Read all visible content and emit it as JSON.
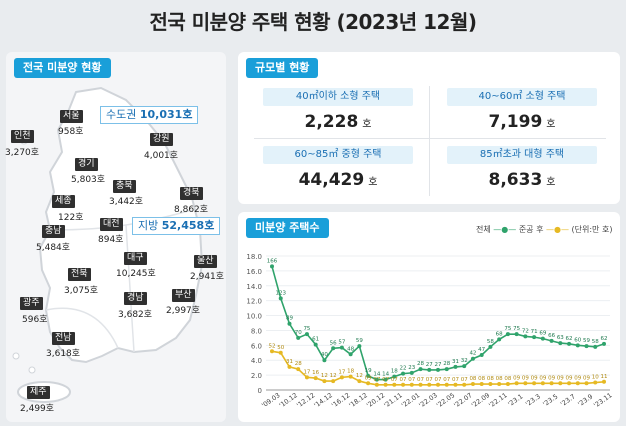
{
  "title": "전국 미분양 주택 현황 (2023년 12월)",
  "left": {
    "tag": "전국 미분양 현황",
    "regions": [
      {
        "name": "서울",
        "value": "958호"
      },
      {
        "name": "인천",
        "value": "3,270호"
      },
      {
        "name": "경기",
        "value": "5,803호"
      },
      {
        "name": "강원",
        "value": "4,001호"
      },
      {
        "name": "충북",
        "value": "3,442호"
      },
      {
        "name": "세종",
        "value": "122호"
      },
      {
        "name": "충남",
        "value": "5,484호"
      },
      {
        "name": "대전",
        "value": "894호"
      },
      {
        "name": "경북",
        "value": "8,862호"
      },
      {
        "name": "전북",
        "value": "3,075호"
      },
      {
        "name": "대구",
        "value": "10,245호"
      },
      {
        "name": "울산",
        "value": "2,941호"
      },
      {
        "name": "광주",
        "value": "596호"
      },
      {
        "name": "경남",
        "value": "3,682호"
      },
      {
        "name": "부산",
        "value": "2,997호"
      },
      {
        "name": "전남",
        "value": "3,618호"
      },
      {
        "name": "제주",
        "value": "2,499호"
      }
    ],
    "capital": {
      "label": "수도권",
      "value": "10,031호"
    },
    "local": {
      "label": "지방",
      "value": "52,458호"
    }
  },
  "size": {
    "tag": "규모별 현황",
    "cells": [
      {
        "label": "40㎡이하 소형 주택",
        "value": "2,228",
        "unit": "호"
      },
      {
        "label": "40~60㎡ 소형 주택",
        "value": "7,199",
        "unit": "호"
      },
      {
        "label": "60~85㎡ 중형 주택",
        "value": "44,429",
        "unit": "호"
      },
      {
        "label": "85㎡초과 대형 주택",
        "value": "8,633",
        "unit": "호"
      }
    ]
  },
  "chart_panel": {
    "tag": "미분양 주택수",
    "legend_total": "전체",
    "legend_after": "준공 후",
    "unit": "(단위:만 호)"
  },
  "chart_data": {
    "type": "line",
    "ylim": [
      0,
      18
    ],
    "yticks": [
      "0",
      "2.0",
      "4.0",
      "6.0",
      "8.0",
      "10.0",
      "12.0",
      "14.0",
      "16.0",
      "18.0"
    ],
    "xticks": [
      "'09.03",
      "'10.12",
      "'12.12",
      "'14.12",
      "'16.12",
      "'18.12",
      "'20.12",
      "'21.11",
      "'22.01",
      "'22.03",
      "'22.05",
      "'22.07",
      "'22.09",
      "'22.11",
      "'23.1",
      "'23.3",
      "'23.5",
      "'23.7",
      "'23.9",
      "'23.11"
    ],
    "series": [
      {
        "name": "전체",
        "color": "#2fa36b",
        "values": [
          16.6,
          12.3,
          8.9,
          7.0,
          7.5,
          6.1,
          4.0,
          5.6,
          5.7,
          4.8,
          5.9,
          1.9,
          1.4,
          1.4,
          1.8,
          2.2,
          2.3,
          2.8,
          2.7,
          2.7,
          2.8,
          3.1,
          3.2,
          4.2,
          4.7,
          5.8,
          6.8,
          7.5,
          7.5,
          7.2,
          7.1,
          6.9,
          6.6,
          6.3,
          6.2,
          6.0,
          5.9,
          5.8,
          6.2
        ],
        "labels": [
          "166",
          "123",
          "89",
          "70",
          "75",
          "61",
          "40",
          "56",
          "57",
          "48",
          "59",
          "19",
          "14",
          "14",
          "18",
          "22",
          "23",
          "28",
          "27",
          "27",
          "28",
          "31",
          "32",
          "42",
          "47",
          "58",
          "68",
          "75",
          "75",
          "72",
          "71",
          "69",
          "66",
          "63",
          "62",
          "60",
          "59",
          "58",
          "62"
        ]
      },
      {
        "name": "준공 후",
        "color": "#e6b923",
        "values": [
          5.2,
          5.0,
          3.1,
          2.8,
          1.7,
          1.6,
          1.2,
          1.2,
          1.7,
          1.8,
          1.2,
          0.9,
          0.7,
          0.7,
          0.7,
          0.7,
          0.7,
          0.7,
          0.7,
          0.7,
          0.7,
          0.7,
          0.7,
          0.8,
          0.8,
          0.8,
          0.8,
          0.8,
          0.9,
          0.9,
          0.9,
          0.9,
          0.9,
          0.9,
          0.9,
          0.9,
          0.9,
          1.0,
          1.1
        ],
        "labels": [
          "52",
          "50",
          "31",
          "28",
          "17",
          "16",
          "12",
          "12",
          "17",
          "18",
          "12",
          "09",
          "07",
          "07",
          "07",
          "07",
          "07",
          "07",
          "07",
          "07",
          "07",
          "07",
          "07",
          "08",
          "08",
          "08",
          "08",
          "08",
          "09",
          "09",
          "09",
          "09",
          "09",
          "09",
          "09",
          "09",
          "09",
          "10",
          "11"
        ]
      }
    ]
  }
}
